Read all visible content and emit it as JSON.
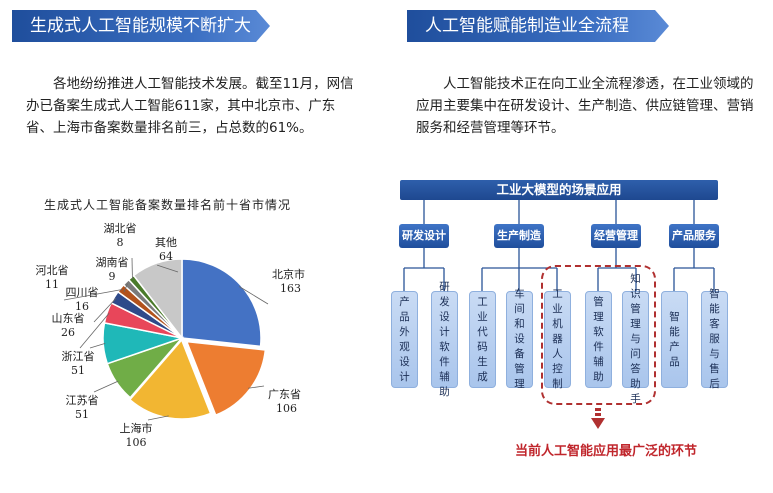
{
  "left": {
    "banner": "生成式人工智能规模不断扩大",
    "paragraph": "各地纷纷推进人工智能技术发展。截至11月，网信办已备案生成式人工智能611家，其中北京市、广东省、上海市备案数量排名前三，占总数的61%。"
  },
  "right": {
    "banner": "人工智能赋能制造业全流程",
    "paragraph": "人工智能技术正在向工业全流程渗透，在工业领域的应用主要集中在研发设计、生产制造、供应链管理、营销服务和经营管理等环节。"
  },
  "chart_data": {
    "type": "pie",
    "title": "生成式人工智能备案数量排名前十省市情况",
    "slices": [
      {
        "name": "北京市",
        "value": 163,
        "color": "#4472c4"
      },
      {
        "name": "广东省",
        "value": 106,
        "color": "#ed7d31"
      },
      {
        "name": "上海市",
        "value": 106,
        "color": "#f2b632"
      },
      {
        "name": "江苏省",
        "value": 51,
        "color": "#70ad47"
      },
      {
        "name": "浙江省",
        "value": 51,
        "color": "#1fb8b8"
      },
      {
        "name": "山东省",
        "value": 26,
        "color": "#e8465a"
      },
      {
        "name": "四川省",
        "value": 16,
        "color": "#2e4a8a"
      },
      {
        "name": "河北省",
        "value": 11,
        "color": "#b2521c"
      },
      {
        "name": "湖南省",
        "value": 9,
        "color": "#7a7a7a"
      },
      {
        "name": "湖北省",
        "value": 8,
        "color": "#4a7a2a"
      },
      {
        "name": "其他",
        "value": 64,
        "color": "#c8c8c8"
      }
    ]
  },
  "diagram": {
    "header": "工业大模型的场景应用",
    "categories": [
      "研发设计",
      "生产制造",
      "经营管理",
      "产品服务"
    ],
    "apps": [
      "产品外观设计",
      "研发设计软件辅助",
      "工业代码生成",
      "车间和设备管理",
      "工业机器人控制",
      "管理软件辅助",
      "知识管理与问答助手",
      "智能产品",
      "智能客服与售后"
    ],
    "caption": "当前人工智能应用最广泛的环节"
  }
}
